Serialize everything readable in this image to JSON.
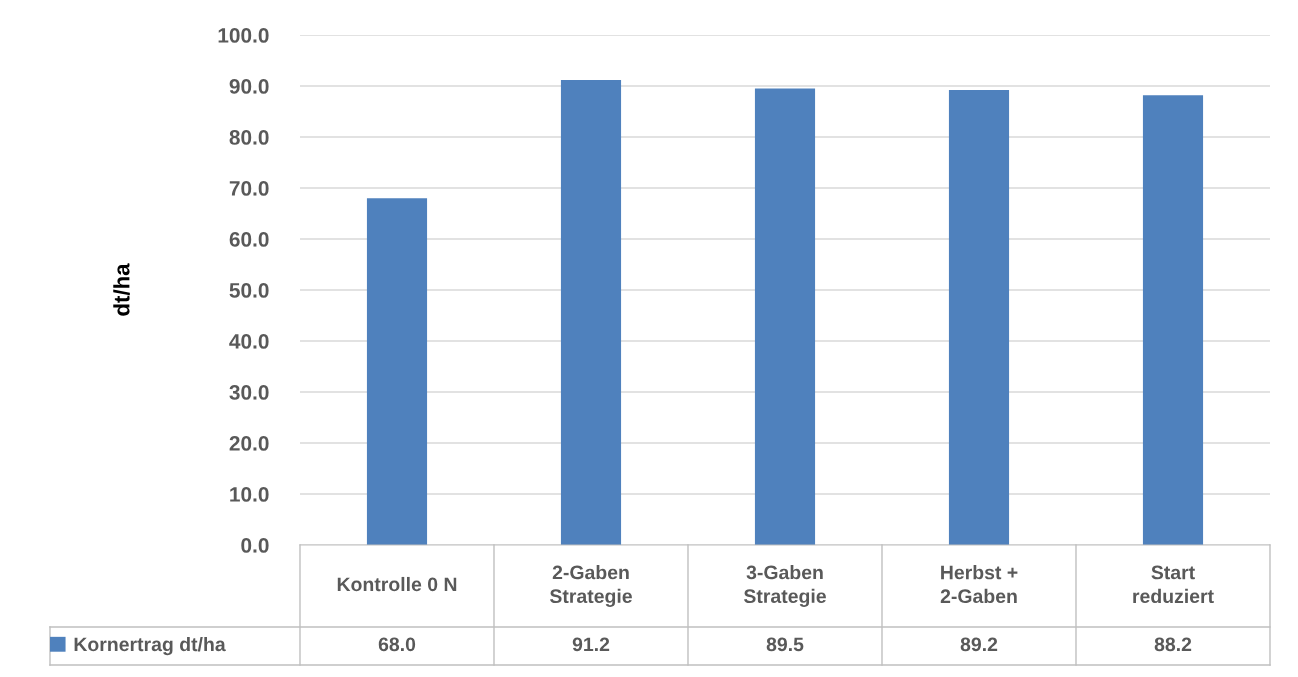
{
  "chart_data": {
    "type": "bar",
    "ylabel": "dt/ha",
    "categories": [
      "Kontrolle 0 N",
      "2-Gaben\nStrategie",
      "3-Gaben\nStrategie",
      "Herbst +\n2-Gaben",
      "Start\nreduziert"
    ],
    "series": [
      {
        "name": "Kornertrag dt/ha",
        "color": "#4f81bd",
        "values": [
          68.0,
          91.2,
          89.5,
          89.2,
          88.2
        ],
        "value_labels": [
          "68.0",
          "91.2",
          "89.5",
          "89.2",
          "88.2"
        ]
      }
    ],
    "ylim": [
      0,
      100
    ],
    "yticks": [
      {
        "value": 0,
        "label": "0.0"
      },
      {
        "value": 10,
        "label": "10.0"
      },
      {
        "value": 20,
        "label": "20.0"
      },
      {
        "value": 30,
        "label": "30.0"
      },
      {
        "value": 40,
        "label": "40.0"
      },
      {
        "value": 50,
        "label": "50.0"
      },
      {
        "value": 60,
        "label": "60.0"
      },
      {
        "value": 70,
        "label": "70.0"
      },
      {
        "value": 80,
        "label": "80.0"
      },
      {
        "value": 90,
        "label": "90.0"
      },
      {
        "value": 100,
        "label": "100.0"
      }
    ],
    "grid": "y",
    "legend": "bottom"
  }
}
